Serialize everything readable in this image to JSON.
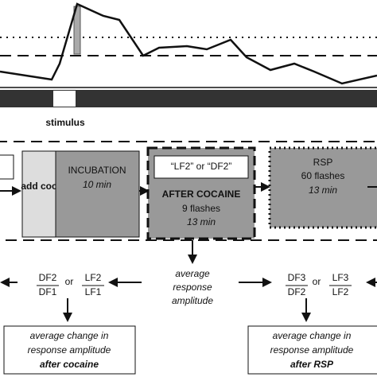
{
  "trace": {
    "label": "stimulus"
  },
  "boxes": [
    {
      "label": "add coc"
    },
    {
      "title": "INCUBATION",
      "duration": "10 min"
    },
    {
      "tag": "“LF2” or “DF2”",
      "title": "AFTER COCAINE",
      "count": "9 flashes",
      "duration": "13 min"
    },
    {
      "title": "RSP",
      "count": "60 flashes",
      "duration": "13 min"
    }
  ],
  "center": {
    "lines": [
      "average",
      "response",
      "amplitude"
    ]
  },
  "ratios": [
    {
      "num1": "DF2",
      "den1": "DF1",
      "or": "or",
      "num2": "LF2",
      "den2": "LF1"
    },
    {
      "num1": "DF3",
      "den1": "DF2",
      "or": "or",
      "num2": "LF3",
      "den2": "LF2"
    }
  ],
  "results": [
    {
      "lines": [
        "average change in",
        "response amplitude"
      ],
      "emphasis": "after cocaine"
    },
    {
      "lines": [
        "average change in",
        "response amplitude"
      ],
      "emphasis": "after RSP"
    }
  ]
}
